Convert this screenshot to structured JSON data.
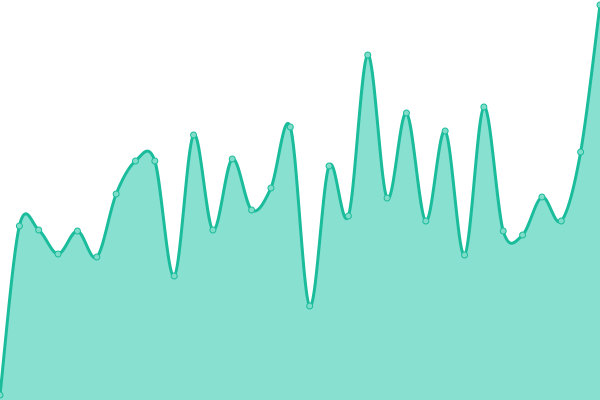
{
  "chart_data": {
    "type": "area",
    "title": "",
    "xlabel": "",
    "ylabel": "",
    "x": [
      0,
      1,
      2,
      3,
      4,
      5,
      6,
      7,
      8,
      9,
      10,
      11,
      12,
      13,
      14,
      15,
      16,
      17,
      18,
      19,
      20,
      21,
      22,
      23,
      24,
      25,
      26,
      27,
      28,
      29,
      30,
      31
    ],
    "values": [
      5,
      174,
      170,
      146,
      169,
      143,
      206,
      239,
      239,
      124,
      265,
      170,
      241,
      190,
      212,
      273,
      94,
      234,
      184,
      345,
      202,
      287,
      179,
      269,
      145,
      293,
      169,
      165,
      203,
      179,
      248,
      395
    ],
    "ylim": [
      0,
      400
    ],
    "grid": false,
    "axes_visible": false,
    "smooth": true,
    "markers": true,
    "colors": {
      "line": "#1abc9c",
      "fill": "#88e0d0",
      "marker_fill": "#7fdcc8",
      "marker_stroke": "#1abc9c"
    }
  }
}
